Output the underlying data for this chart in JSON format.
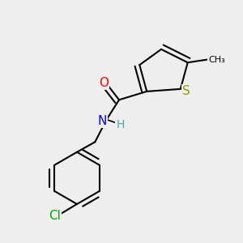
{
  "background_color": "#eeeeee",
  "atoms": {
    "S": {
      "color": "#999900",
      "fontsize": 11
    },
    "O": {
      "color": "#ff0000",
      "fontsize": 11
    },
    "N": {
      "color": "#0000ff",
      "fontsize": 11
    },
    "Cl": {
      "color": "#00aa00",
      "fontsize": 11
    },
    "H": {
      "color": "#44aaaa",
      "fontsize": 10
    }
  },
  "bond_color": "#000000",
  "bond_width": 1.5
}
